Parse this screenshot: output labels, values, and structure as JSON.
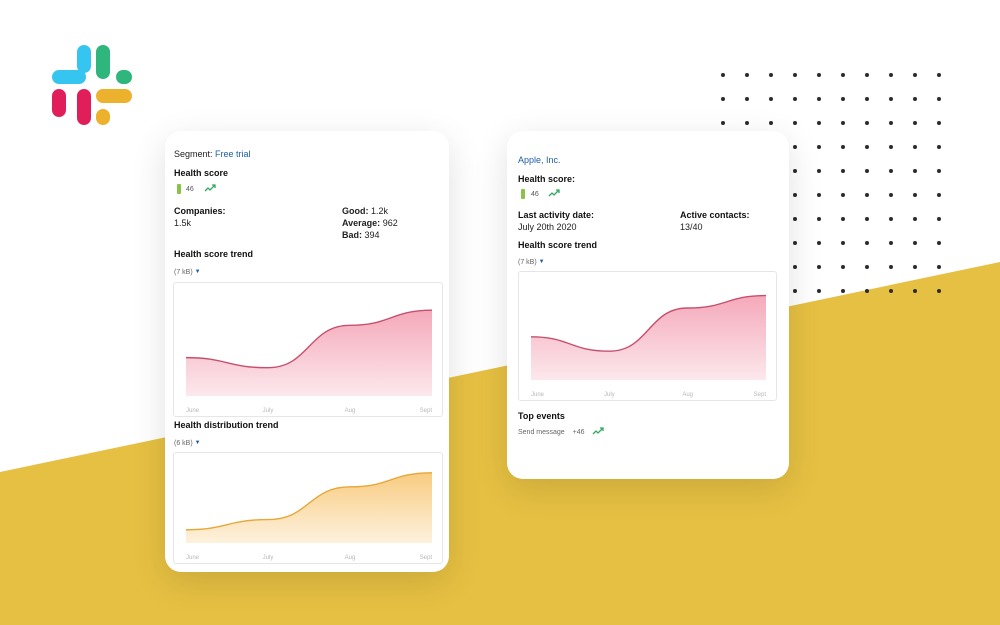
{
  "colors": {
    "yellow": "#e6c042",
    "pink_line": "#c8506e",
    "pink_fill": "#f4a4b6",
    "orange_line": "#e8a838",
    "orange_fill": "#f8c97a",
    "link": "#1f5ea8",
    "health_bar": "#8bc34a",
    "trend_green": "#2eab5c"
  },
  "logo": {
    "icon": "slack-logo-icon"
  },
  "card1": {
    "segment_label": "Segment:",
    "segment_value": "Free trial",
    "health_score_label": "Health score",
    "health_score_value": "46",
    "trend_icon": "trend-up-icon",
    "companies_label": "Companies:",
    "companies_value": "1.5k",
    "good_label": "Good:",
    "good_value": "1.2k",
    "average_label": "Average:",
    "average_value": "962",
    "bad_label": "Bad:",
    "bad_value": "394",
    "trend_title": "Health score trend",
    "trend_size": "(7 kB)",
    "distribution_title": "Health distribution trend",
    "distribution_size": "(6 kB)"
  },
  "card2": {
    "company_name": "Apple, Inc.",
    "health_score_label": "Health score:",
    "health_score_value": "46",
    "last_activity_label": "Last activity date:",
    "last_activity_value": "July 20th 2020",
    "active_contacts_label": "Active contacts:",
    "active_contacts_value": "13/40",
    "trend_title": "Health score trend",
    "trend_size": "(7 kB)",
    "top_events_title": "Top events",
    "event_name": "Send message",
    "event_value": "+46"
  },
  "chart_data": [
    {
      "type": "area",
      "categories": [
        "June",
        "July",
        "Aug",
        "Sept"
      ],
      "values": [
        0.38,
        0.28,
        0.7,
        0.85
      ],
      "ylim": [
        0,
        1
      ],
      "grid": false
    },
    {
      "type": "area",
      "categories": [
        "June",
        "July",
        "Aug",
        "Sept"
      ],
      "values": [
        0.17,
        0.3,
        0.72,
        0.9
      ],
      "ylim": [
        0,
        1
      ],
      "grid": false
    },
    {
      "type": "area",
      "categories": [
        "June",
        "July",
        "Aug",
        "Sept"
      ],
      "values": [
        0.45,
        0.3,
        0.75,
        0.88
      ],
      "ylim": [
        0,
        1
      ],
      "grid": false
    }
  ]
}
